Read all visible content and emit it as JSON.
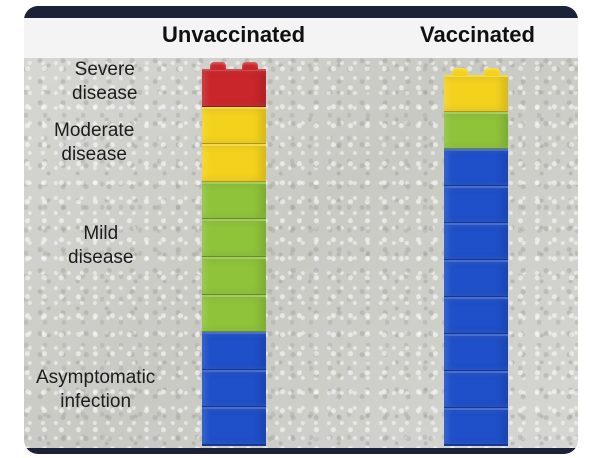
{
  "headers": {
    "unvaccinated": "Unvaccinated",
    "vaccinated": "Vaccinated"
  },
  "labels": {
    "severe": "Severe\ndisease",
    "moderate": "Moderate\ndisease",
    "mild": "Mild\ndisease",
    "asymptomatic": "Asymptomatic\ninfection"
  },
  "colors": {
    "red": "#c8262b",
    "yellow": "#f3d21e",
    "green": "#8fc33a",
    "blue": "#1f4fc9",
    "dark_frame": "#1b2138"
  },
  "towers": {
    "unvaccinated": [
      "red",
      "yellow",
      "yellow",
      "green",
      "green",
      "green",
      "green",
      "blue",
      "blue",
      "blue"
    ],
    "vaccinated": [
      "yellow",
      "green",
      "blue",
      "blue",
      "blue",
      "blue",
      "blue",
      "blue",
      "blue",
      "blue"
    ]
  }
}
